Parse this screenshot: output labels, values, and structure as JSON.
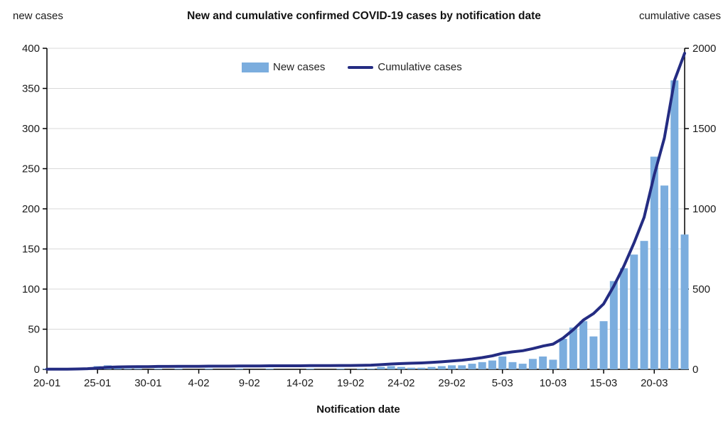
{
  "chart_data": {
    "type": "bar+line",
    "title": "New and cumulative confirmed COVID-19 cases by notification date",
    "xlabel": "Notification date",
    "left_axis_title": "new cases",
    "right_axis_title": "cumulative cases",
    "legend": {
      "new_cases": "New cases",
      "cumulative_cases": "Cumulative cases"
    },
    "colors": {
      "bar": "#7badde",
      "line": "#242c82",
      "grid": "#d9d9d9",
      "axis": "#000000"
    },
    "axes": {
      "left_ylim": [
        0,
        400
      ],
      "left_step": 50,
      "right_ylim": [
        0,
        2000
      ],
      "right_step": 500,
      "left_tick_labels": [
        "0",
        "50",
        "100",
        "150",
        "200",
        "250",
        "300",
        "350",
        "400"
      ],
      "right_tick_labels": [
        "0",
        "500",
        "1000",
        "1500",
        "2000"
      ],
      "grid": true,
      "legend_position": "top-center"
    },
    "x_tick_days": [
      0,
      5,
      10,
      15,
      20,
      25,
      30,
      35,
      40,
      45,
      50,
      55,
      60
    ],
    "x_tick_labels": [
      "20-01",
      "25-01",
      "30-01",
      "4-02",
      "9-02",
      "14-02",
      "19-02",
      "24-02",
      "29-02",
      "5-03",
      "10-03",
      "15-03",
      "20-03"
    ],
    "dates": [
      "20-01",
      "21-01",
      "22-01",
      "23-01",
      "24-01",
      "25-01",
      "26-01",
      "27-01",
      "28-01",
      "29-01",
      "30-01",
      "31-01",
      "1-02",
      "2-02",
      "3-02",
      "4-02",
      "5-02",
      "6-02",
      "7-02",
      "8-02",
      "9-02",
      "10-02",
      "11-02",
      "12-02",
      "13-02",
      "14-02",
      "15-02",
      "16-02",
      "17-02",
      "18-02",
      "19-02",
      "20-02",
      "21-02",
      "22-02",
      "23-02",
      "24-02",
      "25-02",
      "26-02",
      "27-02",
      "28-02",
      "29-02",
      "1-03",
      "2-03",
      "3-03",
      "4-03",
      "5-03",
      "6-03",
      "7-03",
      "8-03",
      "9-03",
      "10-03",
      "11-03",
      "12-03",
      "13-03",
      "14-03",
      "15-03",
      "16-03",
      "17-03",
      "18-03",
      "19-03",
      "20-03",
      "21-03",
      "22-03",
      "23-03"
    ],
    "series": [
      {
        "name": "New cases",
        "type": "bar",
        "axis": "left",
        "values": [
          1,
          0,
          0,
          1,
          2,
          4,
          5,
          2,
          1,
          1,
          0,
          1,
          0,
          1,
          0,
          0,
          1,
          0,
          0,
          1,
          0,
          0,
          1,
          0,
          0,
          0,
          1,
          0,
          0,
          1,
          0,
          1,
          1,
          3,
          4,
          3,
          2,
          2,
          3,
          4,
          5,
          5,
          7,
          9,
          11,
          16,
          9,
          7,
          13,
          16,
          12,
          38,
          52,
          60,
          41,
          60,
          110,
          126,
          143,
          160,
          265,
          229,
          360,
          168
        ]
      },
      {
        "name": "Cumulative cases",
        "type": "line",
        "axis": "right",
        "values": [
          1,
          1,
          1,
          2,
          4,
          8,
          13,
          15,
          16,
          17,
          17,
          18,
          18,
          19,
          19,
          19,
          20,
          20,
          20,
          21,
          21,
          21,
          22,
          22,
          22,
          22,
          23,
          23,
          23,
          24,
          24,
          25,
          26,
          29,
          33,
          36,
          38,
          40,
          43,
          47,
          52,
          57,
          64,
          73,
          84,
          100,
          109,
          116,
          129,
          145,
          157,
          195,
          247,
          307,
          348,
          408,
          518,
          644,
          787,
          947,
          1212,
          1441,
          1801,
          1969
        ]
      }
    ]
  }
}
